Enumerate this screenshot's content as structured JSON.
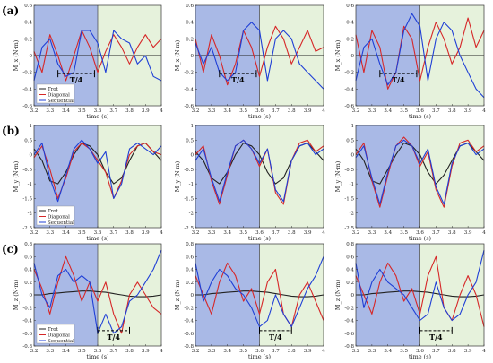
{
  "rows": [
    {
      "label": "(a)",
      "ylabel": "M_x (N·m)",
      "ylim": [
        -0.6,
        0.6
      ],
      "yticks": [
        -0.6,
        -0.4,
        -0.2,
        0,
        0.2,
        0.4,
        0.6
      ]
    },
    {
      "label": "(b)",
      "ylabel": "M_y (N·m)",
      "ylim": [
        -2.5,
        1.0
      ],
      "yticks": [
        -2.5,
        -2,
        -1.5,
        -1,
        -0.5,
        0,
        0.5,
        1
      ]
    },
    {
      "label": "(c)",
      "ylabel": "M_z (N·m)",
      "ylim": [
        -0.8,
        0.8
      ],
      "yticks": [
        -0.8,
        -0.6,
        -0.4,
        -0.2,
        0,
        0.2,
        0.4,
        0.6,
        0.8
      ]
    }
  ],
  "xlabel": "time (s)",
  "xlim": [
    3.2,
    4.0
  ],
  "xticks": [
    3.2,
    3.3,
    3.4,
    3.5,
    3.6,
    3.7,
    3.8,
    3.9,
    4
  ],
  "legend": [
    "Trot",
    "Diagonal",
    "Sequential"
  ],
  "annotation": "T/4",
  "colors": {
    "trot": "#222222",
    "diagonal": "#d62728",
    "sequential": "#1f3fd6",
    "stance_bg": "#a9b9e6",
    "swing_bg": "#e6f2dc"
  },
  "chart_data": [
    {
      "type": "line",
      "row": "a",
      "col": 1,
      "x": [
        3.2,
        3.25,
        3.3,
        3.35,
        3.4,
        3.45,
        3.5,
        3.55,
        3.6,
        3.65,
        3.7,
        3.75,
        3.8,
        3.85,
        3.9,
        3.95,
        4.0
      ],
      "series": [
        {
          "name": "Trot",
          "values": [
            0,
            0,
            0,
            0,
            0,
            0,
            0,
            0,
            0,
            0,
            0,
            0,
            0,
            0,
            0,
            0,
            0
          ]
        },
        {
          "name": "Diagonal",
          "values": [
            0.05,
            -0.2,
            0.25,
            0,
            -0.3,
            0,
            0.3,
            0.1,
            -0.2,
            0.05,
            0.25,
            0.1,
            -0.1,
            0.1,
            0.25,
            0.1,
            0.2
          ]
        },
        {
          "name": "Sequential",
          "values": [
            -0.3,
            0.1,
            0.2,
            -0.1,
            -0.25,
            -0.2,
            0.3,
            0.3,
            0.15,
            -0.2,
            0.3,
            0.2,
            0.15,
            -0.1,
            0.0,
            -0.25,
            -0.3
          ]
        }
      ]
    },
    {
      "type": "line",
      "row": "a",
      "col": 2,
      "x": [
        3.2,
        3.25,
        3.3,
        3.35,
        3.4,
        3.45,
        3.5,
        3.55,
        3.6,
        3.65,
        3.7,
        3.75,
        3.8,
        3.85,
        3.9,
        3.95,
        4.0
      ],
      "series": [
        {
          "name": "Trot",
          "values": [
            0,
            0,
            0,
            0,
            0,
            0,
            0,
            0,
            0,
            0,
            0,
            0,
            0,
            0,
            0,
            0,
            0
          ]
        },
        {
          "name": "Diagonal",
          "values": [
            0.2,
            -0.2,
            0.25,
            0,
            -0.35,
            -0.1,
            0.3,
            0.1,
            -0.25,
            0.1,
            0.35,
            0.2,
            -0.1,
            0.1,
            0.3,
            0.05,
            0.1
          ]
        },
        {
          "name": "Sequential",
          "values": [
            0.15,
            -0.1,
            0.1,
            -0.2,
            -0.3,
            -0.2,
            0.3,
            0.4,
            0.3,
            -0.3,
            0.2,
            0.3,
            0.2,
            -0.1,
            -0.2,
            -0.3,
            -0.4
          ]
        }
      ]
    },
    {
      "type": "line",
      "row": "a",
      "col": 3,
      "x": [
        3.2,
        3.25,
        3.3,
        3.35,
        3.4,
        3.45,
        3.5,
        3.55,
        3.6,
        3.65,
        3.7,
        3.75,
        3.8,
        3.85,
        3.9,
        3.95,
        4.0
      ],
      "series": [
        {
          "name": "Trot",
          "values": [
            0,
            0,
            0,
            0,
            0,
            0,
            0,
            0,
            0,
            0,
            0,
            0,
            0,
            0,
            0,
            0,
            0
          ]
        },
        {
          "name": "Diagonal",
          "values": [
            0.25,
            -0.2,
            0.3,
            0.1,
            -0.4,
            -0.2,
            0.35,
            0.2,
            -0.3,
            0.1,
            0.4,
            0.2,
            -0.1,
            0.1,
            0.45,
            0.1,
            0.3
          ]
        },
        {
          "name": "Sequential",
          "values": [
            -0.3,
            0.1,
            0.2,
            -0.1,
            -0.35,
            -0.2,
            0.3,
            0.5,
            0.35,
            -0.3,
            0.2,
            0.4,
            0.3,
            0.0,
            -0.2,
            -0.4,
            -0.5
          ]
        }
      ]
    },
    {
      "type": "line",
      "row": "b",
      "col": 1,
      "x": [
        3.2,
        3.25,
        3.3,
        3.35,
        3.4,
        3.45,
        3.5,
        3.55,
        3.6,
        3.65,
        3.7,
        3.75,
        3.8,
        3.85,
        3.9,
        3.95,
        4.0
      ],
      "series": [
        {
          "name": "Trot",
          "values": [
            0.2,
            -0.2,
            -0.9,
            -1.0,
            -0.6,
            0.0,
            0.4,
            0.3,
            0.0,
            -0.6,
            -1.0,
            -0.8,
            -0.2,
            0.3,
            0.4,
            0.1,
            -0.2
          ]
        },
        {
          "name": "Diagonal",
          "values": [
            -0.1,
            0.3,
            -0.5,
            -1.5,
            -0.8,
            0.1,
            0.4,
            0.2,
            -0.2,
            -0.6,
            -1.5,
            -0.9,
            0.0,
            0.3,
            0.4,
            0.1,
            0.0
          ]
        },
        {
          "name": "Sequential",
          "values": [
            0.0,
            0.4,
            -0.8,
            -1.6,
            -0.7,
            0.2,
            0.5,
            0.2,
            -0.3,
            0.1,
            -1.5,
            -1.0,
            0.2,
            0.4,
            0.2,
            0.0,
            0.3
          ]
        }
      ]
    },
    {
      "type": "line",
      "row": "b",
      "col": 2,
      "x": [
        3.2,
        3.25,
        3.3,
        3.35,
        3.4,
        3.45,
        3.5,
        3.55,
        3.6,
        3.65,
        3.7,
        3.75,
        3.8,
        3.85,
        3.9,
        3.95,
        4.0
      ],
      "series": [
        {
          "name": "Trot",
          "values": [
            0.1,
            -0.2,
            -0.8,
            -1.0,
            -0.6,
            0.0,
            0.4,
            0.3,
            0.0,
            -0.6,
            -1.0,
            -0.8,
            -0.2,
            0.3,
            0.4,
            0.1,
            -0.2
          ]
        },
        {
          "name": "Diagonal",
          "values": [
            0.0,
            0.3,
            -0.9,
            -1.7,
            -0.7,
            0.3,
            0.5,
            0.2,
            -0.4,
            0.2,
            -1.3,
            -1.7,
            -0.2,
            0.4,
            0.5,
            0.1,
            0.3
          ]
        },
        {
          "name": "Sequential",
          "values": [
            -0.2,
            0.2,
            -0.8,
            -1.6,
            -0.6,
            0.3,
            0.5,
            0.2,
            -0.3,
            0.2,
            -1.2,
            -1.6,
            -0.2,
            0.3,
            0.4,
            0.0,
            0.2
          ]
        }
      ]
    },
    {
      "type": "line",
      "row": "b",
      "col": 3,
      "x": [
        3.2,
        3.25,
        3.3,
        3.35,
        3.4,
        3.45,
        3.5,
        3.55,
        3.6,
        3.65,
        3.7,
        3.75,
        3.8,
        3.85,
        3.9,
        3.95,
        4.0
      ],
      "series": [
        {
          "name": "Trot",
          "values": [
            0.2,
            -0.2,
            -0.9,
            -1.0,
            -0.5,
            0.0,
            0.4,
            0.3,
            0.0,
            -0.6,
            -1.0,
            -0.7,
            -0.2,
            0.3,
            0.4,
            0.1,
            -0.2
          ]
        },
        {
          "name": "Diagonal",
          "values": [
            0.0,
            0.4,
            -0.9,
            -1.8,
            -0.7,
            0.3,
            0.6,
            0.3,
            -0.4,
            0.1,
            -1.2,
            -1.8,
            -0.4,
            0.4,
            0.5,
            0.1,
            0.3
          ]
        },
        {
          "name": "Sequential",
          "values": [
            -0.1,
            0.3,
            -0.8,
            -1.7,
            -0.6,
            0.3,
            0.5,
            0.3,
            -0.3,
            0.2,
            -1.1,
            -1.7,
            -0.3,
            0.3,
            0.4,
            0.0,
            0.2
          ]
        }
      ]
    },
    {
      "type": "line",
      "row": "c",
      "col": 1,
      "x": [
        3.2,
        3.25,
        3.3,
        3.35,
        3.4,
        3.45,
        3.5,
        3.55,
        3.6,
        3.65,
        3.7,
        3.75,
        3.8,
        3.85,
        3.9,
        3.95,
        4.0
      ],
      "series": [
        {
          "name": "Trot",
          "values": [
            0,
            0,
            0.02,
            0.03,
            0.04,
            0.05,
            0.06,
            0.06,
            0.05,
            0.04,
            0.02,
            0,
            -0.02,
            -0.03,
            -0.03,
            -0.02,
            0
          ]
        },
        {
          "name": "Diagonal",
          "values": [
            0.4,
            0.1,
            -0.3,
            0.2,
            0.6,
            0.3,
            -0.1,
            0.2,
            -0.1,
            0.2,
            -0.3,
            -0.6,
            0.0,
            0.2,
            0.0,
            -0.2,
            -0.3
          ]
        },
        {
          "name": "Sequential",
          "values": [
            0.5,
            0.0,
            -0.2,
            0.3,
            0.4,
            0.2,
            0.3,
            0.2,
            -0.6,
            -0.3,
            -0.6,
            -0.5,
            -0.1,
            0.0,
            0.2,
            0.4,
            0.7
          ]
        }
      ]
    },
    {
      "type": "line",
      "row": "c",
      "col": 2,
      "x": [
        3.2,
        3.25,
        3.3,
        3.35,
        3.4,
        3.45,
        3.5,
        3.55,
        3.6,
        3.65,
        3.7,
        3.75,
        3.8,
        3.85,
        3.9,
        3.95,
        4.0
      ],
      "series": [
        {
          "name": "Trot",
          "values": [
            0,
            0,
            0.02,
            0.03,
            0.04,
            0.05,
            0.06,
            0.06,
            0.05,
            0.04,
            0.02,
            0,
            -0.02,
            -0.03,
            -0.03,
            -0.02,
            0
          ]
        },
        {
          "name": "Diagonal",
          "values": [
            0.3,
            0.0,
            -0.3,
            0.2,
            0.5,
            0.3,
            -0.1,
            0.1,
            -0.3,
            0.2,
            0.4,
            -0.3,
            -0.5,
            0.0,
            0.2,
            -0.1,
            -0.4
          ]
        },
        {
          "name": "Sequential",
          "values": [
            0.5,
            -0.1,
            0.2,
            0.4,
            0.3,
            0.1,
            0.0,
            -0.2,
            -0.5,
            -0.4,
            0.0,
            -0.3,
            -0.5,
            -0.2,
            0.1,
            0.3,
            0.6
          ]
        }
      ]
    },
    {
      "type": "line",
      "row": "c",
      "col": 3,
      "x": [
        3.2,
        3.25,
        3.3,
        3.35,
        3.4,
        3.45,
        3.5,
        3.55,
        3.6,
        3.65,
        3.7,
        3.75,
        3.8,
        3.85,
        3.9,
        3.95,
        4.0
      ],
      "series": [
        {
          "name": "Trot",
          "values": [
            0,
            0,
            0.02,
            0.03,
            0.04,
            0.05,
            0.06,
            0.06,
            0.05,
            0.04,
            0.02,
            0,
            -0.02,
            -0.03,
            -0.03,
            -0.02,
            0
          ]
        },
        {
          "name": "Diagonal",
          "values": [
            0.3,
            0.0,
            -0.3,
            0.2,
            0.5,
            0.3,
            -0.1,
            0.1,
            -0.3,
            0.3,
            0.6,
            -0.2,
            -0.4,
            0.0,
            0.3,
            0.0,
            -0.5
          ]
        },
        {
          "name": "Sequential",
          "values": [
            0.5,
            -0.2,
            0.2,
            0.4,
            0.2,
            0.1,
            0.0,
            -0.2,
            -0.4,
            -0.3,
            0.2,
            -0.2,
            -0.4,
            -0.3,
            0.0,
            0.2,
            0.7
          ]
        }
      ]
    }
  ]
}
